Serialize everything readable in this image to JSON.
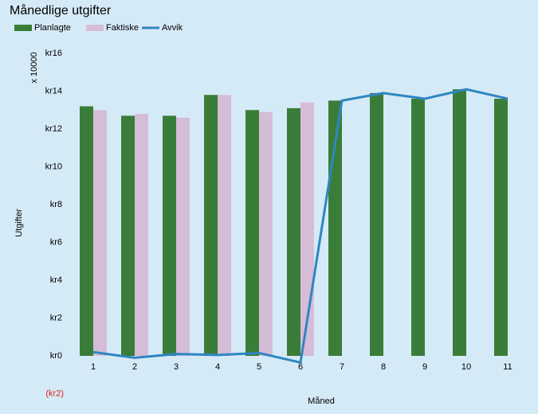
{
  "chart_data": {
    "type": "bar",
    "title": "Månedlige utgifter",
    "x_label": "Måned",
    "y_label": "Utgifter",
    "y_unit": "x 10000",
    "categories": [
      "1",
      "2",
      "3",
      "4",
      "5",
      "6",
      "7",
      "8",
      "9",
      "10",
      "11"
    ],
    "series": [
      {
        "name": "Planlagte",
        "type": "bar",
        "color": "#3a7d39",
        "values": [
          13.2,
          12.7,
          12.7,
          13.8,
          13.0,
          13.1,
          13.5,
          13.9,
          13.6,
          14.1,
          13.6
        ]
      },
      {
        "name": "Faktiske",
        "type": "bar",
        "color": "#d5bdd7",
        "values": [
          13.0,
          12.8,
          12.6,
          13.8,
          12.9,
          13.4,
          null,
          null,
          null,
          null,
          null
        ]
      },
      {
        "name": "Avvik",
        "type": "line",
        "color": "#2e86c1",
        "values": [
          0.2,
          -0.1,
          0.1,
          0.05,
          0.15,
          -0.35,
          13.5,
          13.9,
          13.6,
          14.1,
          13.6
        ]
      }
    ],
    "ylim": [
      -2,
      16
    ],
    "yticks": [
      {
        "value": -2,
        "label": "(kr2)"
      },
      {
        "value": 0,
        "label": "kr0"
      },
      {
        "value": 2,
        "label": "kr2"
      },
      {
        "value": 4,
        "label": "kr4"
      },
      {
        "value": 6,
        "label": "kr6"
      },
      {
        "value": 8,
        "label": "kr8"
      },
      {
        "value": 10,
        "label": "kr10"
      },
      {
        "value": 12,
        "label": "kr12"
      },
      {
        "value": 14,
        "label": "kr14"
      },
      {
        "value": 16,
        "label": "kr16"
      }
    ],
    "negative_tick_color": "#e0201b",
    "legend": "top-left"
  }
}
